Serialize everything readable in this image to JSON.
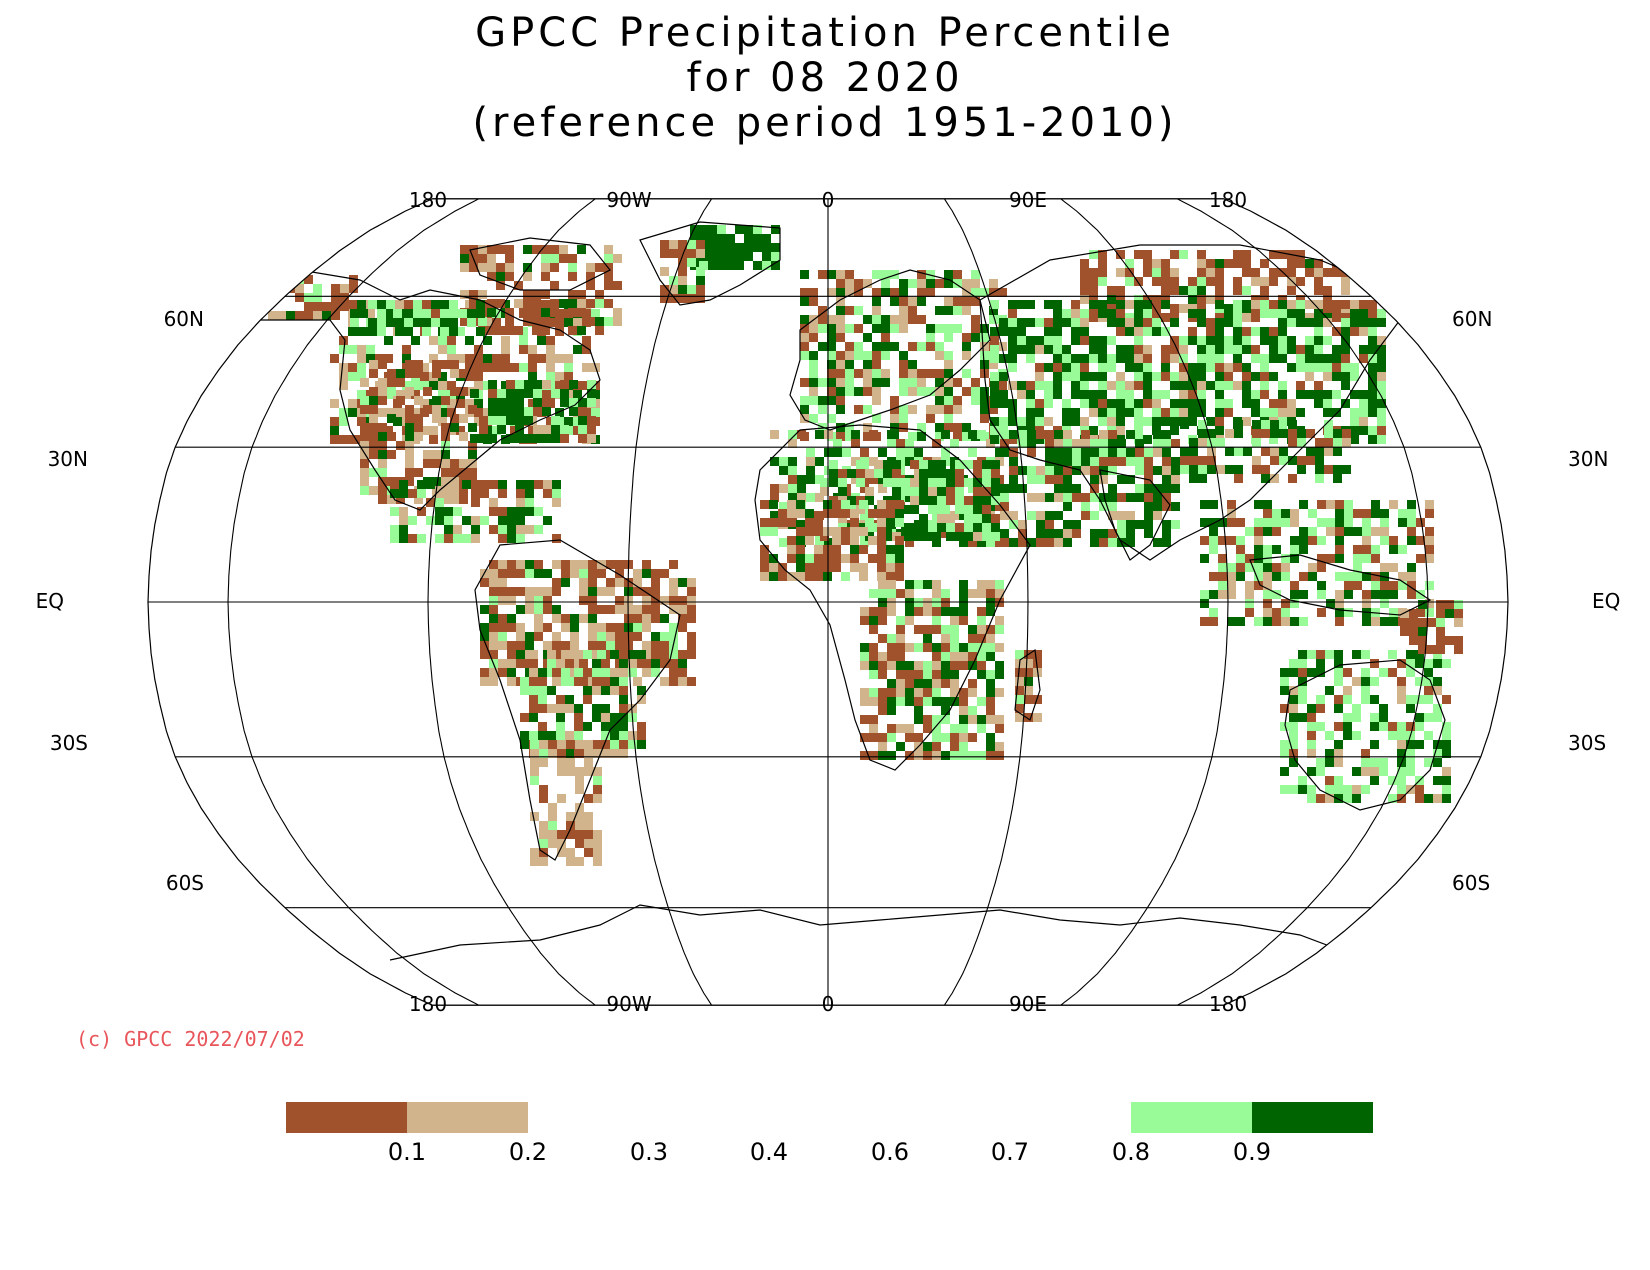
{
  "title": {
    "line1": "GPCC Precipitation Percentile",
    "line2": "for 08 2020",
    "line3": "(reference period 1951-2010)"
  },
  "axes": {
    "longitude_labels_top": [
      "180",
      "90W",
      "0",
      "90E",
      "180"
    ],
    "longitude_labels_bottom": [
      "180",
      "90W",
      "0",
      "90E",
      "180"
    ],
    "latitude_labels": [
      "60N",
      "30N",
      "EQ",
      "30S",
      "60S"
    ]
  },
  "copyright": "(c) GPCC 2022/07/02",
  "legend": {
    "tick_labels": [
      "0.1",
      "0.2",
      "0.3",
      "0.4",
      "0.6",
      "0.7",
      "0.8",
      "0.9"
    ],
    "colors": {
      "below_0_1": "#a0522d",
      "0_1_to_0_2": "#d2b48c",
      "0_8_to_0_9": "#98fb98",
      "above_0_9": "#006400"
    }
  },
  "map": {
    "projection": "Robinson",
    "colors": {
      "very_dry": "#a0522d",
      "dry": "#d2b48c",
      "wet": "#98fb98",
      "very_wet": "#006400"
    }
  }
}
